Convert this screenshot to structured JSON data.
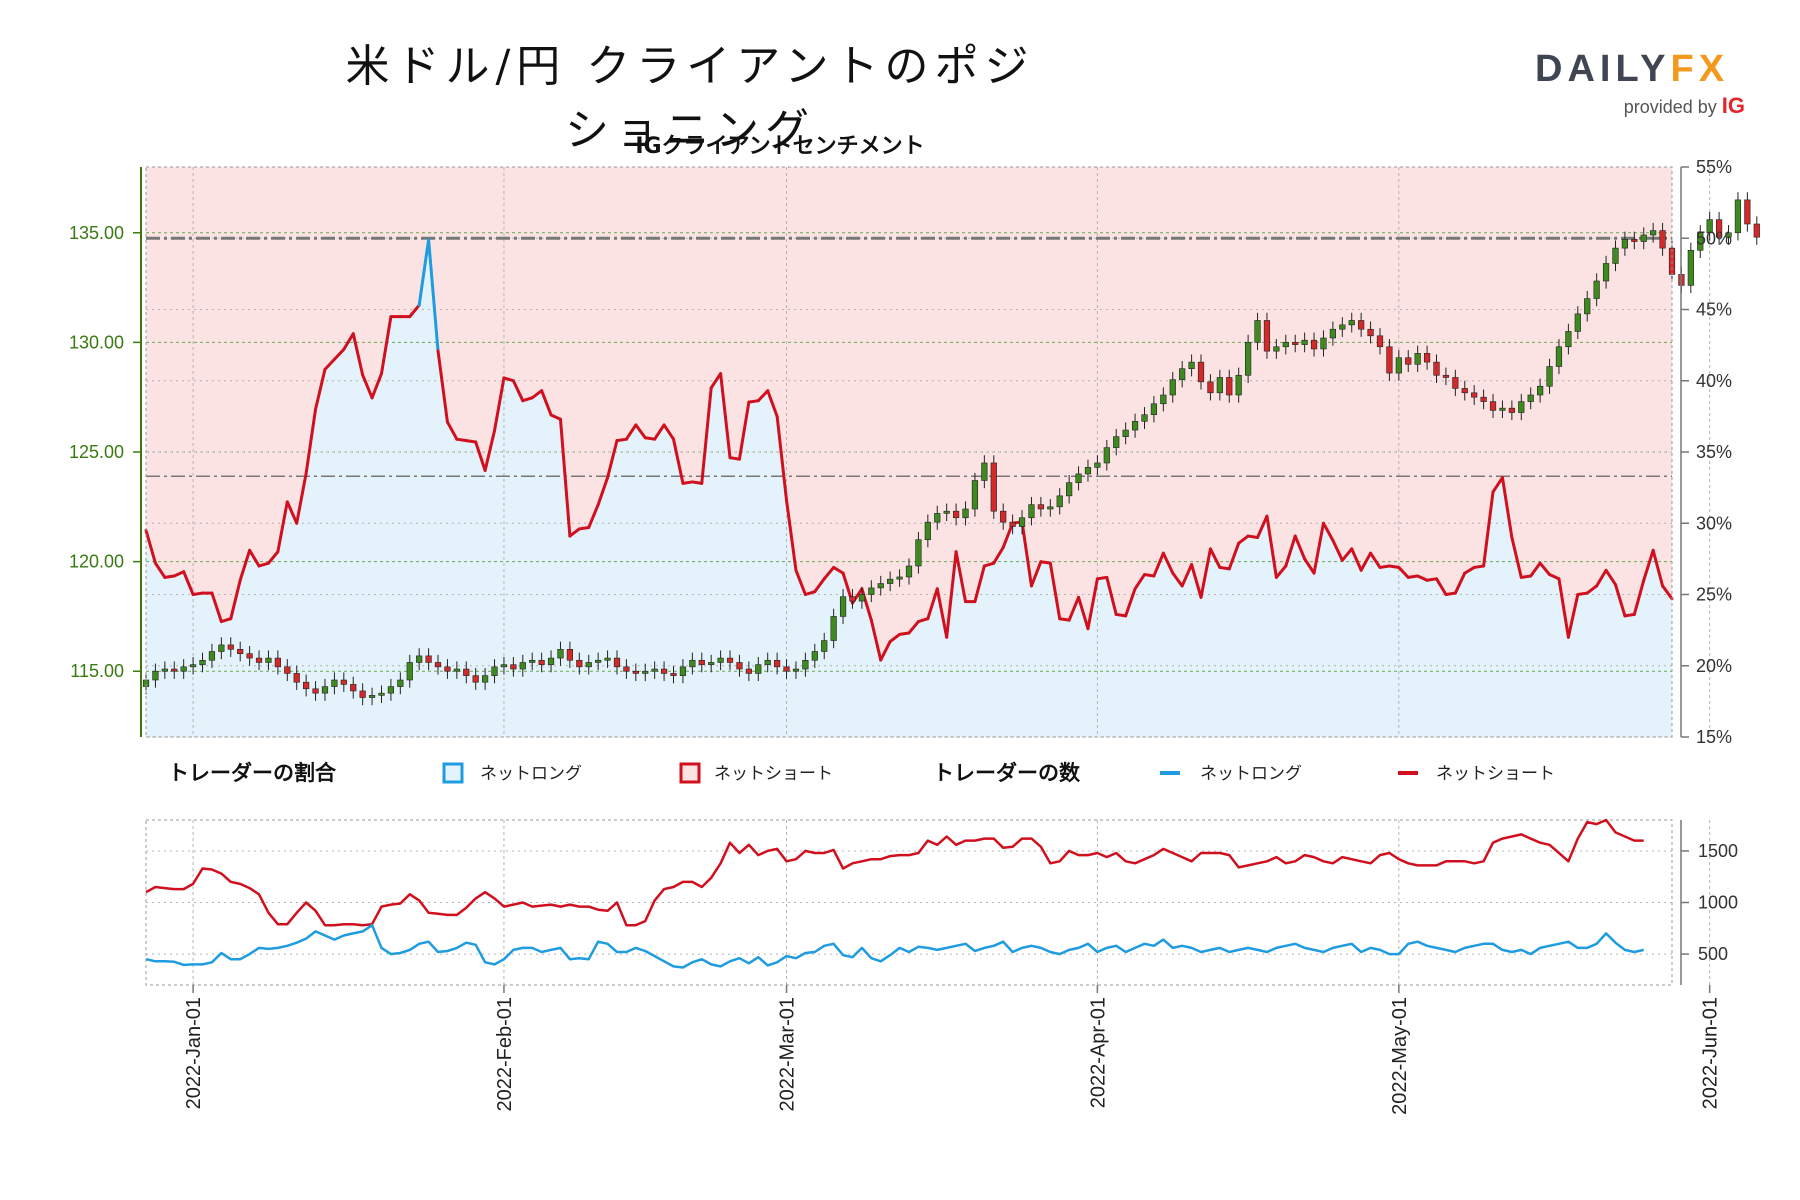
{
  "title": "米ドル/円 クライアントのポジショニング",
  "logo": {
    "main": "DAILY",
    "accent": "FX",
    "provided": "provided by",
    "brand": "IG"
  },
  "subtitle": "IGクライアントセンチメント",
  "colors": {
    "long_fill": "#e4f3fb",
    "short_fill": "#fbe3e3",
    "long_line": "#1f9ce0",
    "short_line": "#d0101e",
    "candle_up": "#3f8a20",
    "candle_down": "#d22a2a",
    "price_axis": "#3a7a12",
    "grid": "#b4b4b4"
  },
  "legend": {
    "ratio_title": "トレーダーの割合",
    "count_title": "トレーダーの数",
    "net_long": "ネットロング",
    "net_short": "ネットショート"
  },
  "chart_data": [
    {
      "type": "candlestick",
      "title": "IGクライアントセンチメント",
      "y_left_ticks": [
        "115.00",
        "120.00",
        "125.00",
        "130.00",
        "135.00"
      ],
      "y_left_range": [
        112.0,
        138.0
      ],
      "y_right_ticks": [
        "15%",
        "20%",
        "25%",
        "30%",
        "35%",
        "40%",
        "45%",
        "50%",
        "55%"
      ],
      "y_right_range": [
        15,
        55
      ],
      "reference_levels_percent": [
        50,
        33.3
      ],
      "price_close": [
        114.6,
        115.0,
        115.1,
        115.0,
        115.2,
        115.3,
        115.5,
        115.9,
        116.2,
        116.0,
        115.8,
        115.6,
        115.4,
        115.6,
        115.2,
        114.9,
        114.5,
        114.2,
        114.0,
        114.3,
        114.6,
        114.4,
        114.1,
        113.8,
        113.9,
        114.0,
        114.3,
        114.6,
        115.4,
        115.7,
        115.4,
        115.2,
        115.0,
        115.1,
        114.8,
        114.5,
        114.8,
        115.2,
        115.3,
        115.1,
        115.4,
        115.5,
        115.3,
        115.6,
        116.0,
        115.5,
        115.2,
        115.4,
        115.5,
        115.6,
        115.2,
        115.0,
        114.9,
        115.0,
        115.1,
        114.9,
        114.8,
        115.2,
        115.5,
        115.3,
        115.4,
        115.6,
        115.4,
        115.1,
        114.9,
        115.3,
        115.5,
        115.2,
        115.0,
        115.1,
        115.5,
        115.9,
        116.4,
        117.5,
        118.4,
        118.2,
        118.5,
        118.8,
        119.0,
        119.2,
        119.3,
        119.8,
        121.0,
        121.8,
        122.2,
        122.3,
        122.0,
        122.4,
        123.7,
        124.5,
        122.3,
        121.8,
        121.6,
        122.0,
        122.6,
        122.4,
        122.5,
        123.0,
        123.6,
        124.0,
        124.3,
        124.5,
        125.2,
        125.7,
        126.0,
        126.4,
        126.7,
        127.2,
        127.6,
        128.3,
        128.8,
        129.1,
        128.2,
        127.7,
        128.4,
        127.6,
        128.5,
        130.0,
        131.0,
        129.6,
        129.8,
        130.0,
        129.9,
        130.1,
        129.7,
        130.2,
        130.6,
        130.8,
        131.0,
        130.6,
        130.3,
        129.8,
        128.6,
        129.3,
        129.0,
        129.5,
        129.1,
        128.5,
        128.4,
        127.9,
        127.7,
        127.5,
        127.3,
        126.9,
        127.0,
        126.8,
        127.3,
        127.6,
        128.0,
        128.9,
        129.8,
        130.5,
        131.3,
        132.0,
        132.8,
        133.6,
        134.3,
        134.7,
        134.6,
        134.9,
        135.1,
        134.3,
        133.1,
        132.6,
        134.2,
        135.0,
        135.6,
        134.8,
        135.0,
        136.5,
        135.4,
        134.8
      ]
    },
    {
      "type": "line",
      "series": [
        {
          "name": "ネットショート",
          "unit": "percent",
          "values": [
            29.5,
            27.2,
            26.2,
            26.3,
            26.6,
            25.0,
            25.1,
            25.1,
            23.1,
            23.3,
            26.0,
            28.1,
            27.0,
            27.2,
            28.0,
            31.5,
            30.0,
            33.5,
            38.0,
            40.8,
            41.5,
            42.2,
            43.3,
            40.4,
            38.8,
            40.5,
            44.5,
            44.5,
            44.5,
            45.3,
            49.9,
            42.1,
            37.1,
            35.9,
            35.8,
            35.7,
            33.7,
            36.5,
            40.2,
            40.0,
            38.6,
            38.8,
            39.3,
            37.6,
            37.3,
            29.1,
            29.6,
            29.7,
            31.3,
            33.2,
            35.8,
            35.9,
            36.9,
            36.0,
            35.9,
            36.9,
            35.9,
            32.8,
            32.9,
            32.8,
            39.5,
            40.5,
            34.6,
            34.5,
            38.5,
            38.6,
            39.3,
            37.5,
            31.6,
            26.7,
            25.0,
            25.2,
            26.1,
            26.9,
            26.5,
            24.4,
            25.4,
            23.2,
            20.4,
            21.7,
            22.2,
            22.3,
            23.1,
            23.3,
            25.4,
            22.0,
            28.0,
            24.5,
            24.5,
            27.0,
            27.2,
            28.3,
            30.0,
            30.1,
            25.6,
            27.3,
            27.2,
            23.3,
            23.2,
            24.8,
            22.6,
            26.1,
            26.2,
            23.6,
            23.5,
            25.4,
            26.4,
            26.3,
            27.9,
            26.5,
            25.6,
            27.1,
            24.8,
            28.2,
            26.9,
            26.8,
            28.6,
            29.1,
            29.0,
            30.5,
            26.2,
            27.0,
            29.1,
            27.5,
            26.5,
            30.0,
            28.8,
            27.4,
            28.2,
            26.7,
            27.9,
            26.9,
            27.0,
            26.9,
            26.2,
            26.3,
            26.0,
            26.1,
            25.0,
            25.1,
            26.5,
            26.9,
            27.0,
            32.2,
            33.2,
            29.0,
            26.2,
            26.3,
            27.2,
            26.4,
            26.1,
            22.0,
            25.0,
            25.1,
            25.6,
            26.7,
            25.7,
            23.5,
            23.6,
            26.0,
            28.1,
            25.6,
            24.7
          ]
        },
        {
          "name": "ネットロング",
          "unit": "count",
          "values": [
            450,
            430,
            430,
            425,
            395,
            400,
            400,
            420,
            510,
            450,
            450,
            500,
            560,
            550,
            560,
            580,
            610,
            650,
            720,
            680,
            640,
            680,
            700,
            720,
            780,
            560,
            500,
            510,
            540,
            600,
            620,
            520,
            530,
            560,
            610,
            590,
            420,
            400,
            450,
            540,
            560,
            560,
            520,
            540,
            560,
            450,
            460,
            450,
            620,
            600,
            520,
            520,
            560,
            530,
            480,
            430,
            380,
            370,
            420,
            450,
            400,
            380,
            430,
            460,
            410,
            470,
            390,
            420,
            480,
            460,
            510,
            520,
            580,
            600,
            490,
            470,
            560,
            460,
            430,
            490,
            560,
            520,
            570,
            560,
            540,
            560,
            580,
            600,
            530,
            560,
            580,
            620,
            520,
            560,
            580,
            560,
            520,
            500,
            540,
            560,
            600,
            520,
            560,
            580,
            520,
            560,
            600,
            580,
            640,
            560,
            580,
            560,
            520,
            540,
            560,
            520,
            540,
            560,
            540,
            520,
            560,
            580,
            600,
            560,
            540,
            520,
            560,
            580,
            600,
            520,
            560,
            540,
            500,
            500,
            600,
            620,
            580,
            560,
            540,
            520,
            560,
            580,
            600,
            600,
            540,
            520,
            540,
            500,
            560,
            580,
            600,
            620,
            560,
            560,
            600,
            700,
            610,
            540,
            520,
            540
          ]
        },
        {
          "name": "ネットショート",
          "unit": "count",
          "values": [
            1100,
            1150,
            1140,
            1130,
            1130,
            1180,
            1330,
            1320,
            1280,
            1200,
            1180,
            1140,
            1080,
            900,
            790,
            790,
            900,
            1000,
            920,
            780,
            780,
            790,
            790,
            780,
            790,
            960,
            980,
            990,
            1080,
            1020,
            900,
            890,
            880,
            880,
            950,
            1040,
            1100,
            1040,
            960,
            980,
            1000,
            960,
            970,
            980,
            960,
            980,
            960,
            960,
            930,
            920,
            1000,
            780,
            780,
            820,
            1020,
            1130,
            1150,
            1200,
            1200,
            1150,
            1240,
            1380,
            1580,
            1480,
            1560,
            1460,
            1500,
            1520,
            1400,
            1420,
            1500,
            1480,
            1480,
            1510,
            1330,
            1380,
            1400,
            1420,
            1420,
            1450,
            1460,
            1460,
            1480,
            1600,
            1560,
            1640,
            1560,
            1600,
            1600,
            1620,
            1620,
            1530,
            1540,
            1620,
            1620,
            1540,
            1380,
            1400,
            1500,
            1460,
            1460,
            1480,
            1440,
            1480,
            1400,
            1380,
            1420,
            1460,
            1520,
            1480,
            1440,
            1400,
            1480,
            1480,
            1480,
            1460,
            1340,
            1360,
            1380,
            1400,
            1440,
            1380,
            1400,
            1460,
            1440,
            1400,
            1380,
            1440,
            1420,
            1400,
            1380,
            1460,
            1480,
            1420,
            1380,
            1360,
            1360,
            1360,
            1400,
            1400,
            1400,
            1380,
            1400,
            1580,
            1620,
            1640,
            1660,
            1620,
            1580,
            1560,
            1480,
            1400,
            1620,
            1780,
            1760,
            1800,
            1680,
            1640,
            1600,
            1600
          ]
        }
      ],
      "y_ticks": [
        "500",
        "1000",
        "1500"
      ],
      "y_range": [
        200,
        1800
      ]
    }
  ],
  "x_labels": [
    "2022-Jan-01",
    "2022-Feb-01",
    "2022-Mar-01",
    "2022-Apr-01",
    "2022-May-01",
    "2022-Jun-01"
  ]
}
